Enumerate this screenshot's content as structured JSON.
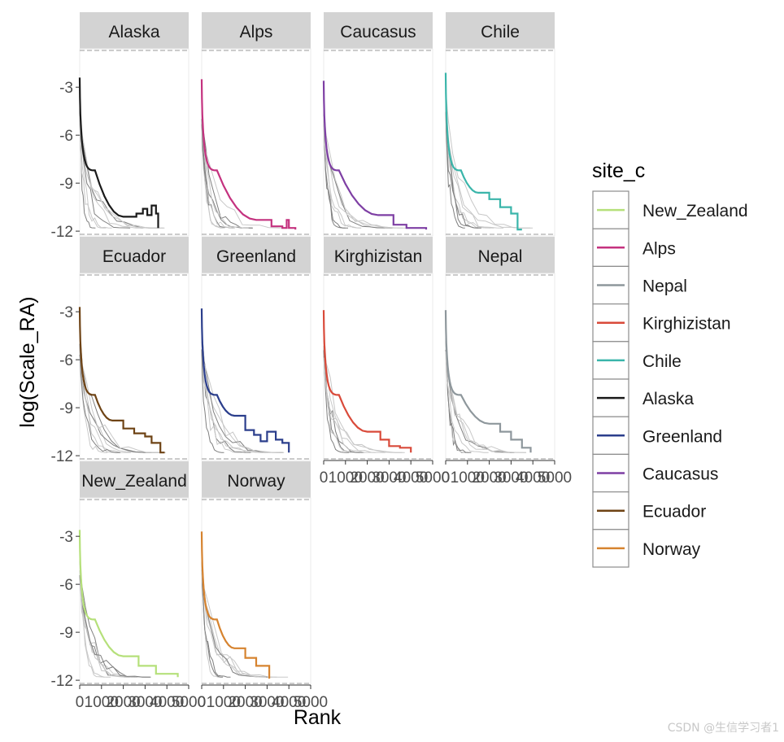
{
  "chart_data": {
    "type": "line",
    "title": "",
    "xlabel": "Rank",
    "ylabel": "log(Scale_RA)",
    "xlim": [
      0,
      5000
    ],
    "ylim": [
      -12.3,
      -0.6
    ],
    "y_ticks": [
      -3,
      -6,
      -9,
      -12
    ],
    "y_tick_labels": [
      "-3",
      "-6",
      "-9",
      "-12"
    ],
    "x_ticks": [
      0,
      1000,
      2000,
      3000,
      4000,
      5000
    ],
    "x_tick_labels": [
      "0",
      "1000",
      "2000",
      "3000",
      "4000",
      "5000"
    ],
    "grid": false,
    "legend_position": "right",
    "legend": {
      "title": "site_c",
      "items": [
        {
          "name": "New_Zealand",
          "color": "#b5e07a"
        },
        {
          "name": "Alps",
          "color": "#c4327f"
        },
        {
          "name": "Nepal",
          "color": "#8e979c"
        },
        {
          "name": "Kirghizistan",
          "color": "#d94a3a"
        },
        {
          "name": "Chile",
          "color": "#3ab5aa"
        },
        {
          "name": "Alaska",
          "color": "#1a1a1a"
        },
        {
          "name": "Greenland",
          "color": "#2b3e8c"
        },
        {
          "name": "Caucasus",
          "color": "#7e3fa4"
        },
        {
          "name": "Ecuador",
          "color": "#6e4315"
        },
        {
          "name": "Norway",
          "color": "#d6832f"
        }
      ]
    },
    "panels": [
      {
        "strip": "Alaska",
        "site": "Alaska",
        "color": "#1a1a1a",
        "peak": -2.4,
        "end_rank": 3600,
        "tail": [
          [
            2000,
            -11.1
          ],
          [
            2600,
            -10.9
          ],
          [
            2900,
            -10.6
          ],
          [
            3100,
            -11.0
          ],
          [
            3300,
            -10.4
          ],
          [
            3500,
            -10.9
          ],
          [
            3600,
            -11.8
          ]
        ]
      },
      {
        "strip": "Alps",
        "site": "Alps",
        "color": "#c4327f",
        "peak": -2.5,
        "end_rank": 4300,
        "tail": [
          [
            2500,
            -11.3
          ],
          [
            3200,
            -11.7
          ],
          [
            3700,
            -11.8
          ],
          [
            3900,
            -11.3
          ],
          [
            4000,
            -11.8
          ],
          [
            4300,
            -11.9
          ]
        ]
      },
      {
        "strip": "Caucasus",
        "site": "Caucasus",
        "color": "#7e3fa4",
        "peak": -2.6,
        "end_rank": 4700,
        "tail": [
          [
            2500,
            -11.0
          ],
          [
            3200,
            -11.6
          ],
          [
            3800,
            -11.8
          ],
          [
            4700,
            -11.9
          ]
        ]
      },
      {
        "strip": "Chile",
        "site": "Chile",
        "color": "#3ab5aa",
        "peak": -2.1,
        "end_rank": 3500,
        "tail": [
          [
            1500,
            -9.6
          ],
          [
            2000,
            -10.0
          ],
          [
            2500,
            -10.5
          ],
          [
            3000,
            -10.9
          ],
          [
            3300,
            -11.9
          ],
          [
            3500,
            -11.9
          ]
        ]
      },
      {
        "strip": "Ecuador",
        "site": "Ecuador",
        "color": "#6e4315",
        "peak": -2.7,
        "end_rank": 3900,
        "tail": [
          [
            1500,
            -9.8
          ],
          [
            2000,
            -10.3
          ],
          [
            2500,
            -10.6
          ],
          [
            3000,
            -10.8
          ],
          [
            3300,
            -11.2
          ],
          [
            3700,
            -11.8
          ],
          [
            3900,
            -11.8
          ]
        ]
      },
      {
        "strip": "Greenland",
        "site": "Greenland",
        "color": "#2b3e8c",
        "peak": -2.8,
        "end_rank": 4000,
        "tail": [
          [
            1500,
            -9.5
          ],
          [
            2000,
            -10.4
          ],
          [
            2400,
            -10.7
          ],
          [
            2700,
            -11.1
          ],
          [
            3000,
            -10.5
          ],
          [
            3400,
            -11.0
          ],
          [
            3700,
            -11.2
          ],
          [
            4000,
            -11.8
          ]
        ]
      },
      {
        "strip": "Kirghizistan",
        "site": "Kirghizistan",
        "color": "#d94a3a",
        "peak": -2.9,
        "end_rank": 4000,
        "tail": [
          [
            2000,
            -10.5
          ],
          [
            2600,
            -11.0
          ],
          [
            3000,
            -11.4
          ],
          [
            3500,
            -11.5
          ],
          [
            4000,
            -11.8
          ]
        ]
      },
      {
        "strip": "Nepal",
        "site": "Nepal",
        "color": "#8e979c",
        "peak": -2.9,
        "end_rank": 3900,
        "tail": [
          [
            2000,
            -10.0
          ],
          [
            2500,
            -10.5
          ],
          [
            3000,
            -11.0
          ],
          [
            3500,
            -11.5
          ],
          [
            3900,
            -11.8
          ]
        ]
      },
      {
        "strip": "New_Zealand",
        "site": "New_Zealand",
        "color": "#b5e07a",
        "peak": -2.6,
        "end_rank": 4500,
        "tail": [
          [
            2000,
            -10.5
          ],
          [
            2700,
            -11.1
          ],
          [
            3500,
            -11.6
          ],
          [
            4500,
            -11.8
          ]
        ]
      },
      {
        "strip": "Norway",
        "site": "Norway",
        "color": "#d6832f",
        "peak": -2.7,
        "end_rank": 3100,
        "tail": [
          [
            1500,
            -10.0
          ],
          [
            2000,
            -10.6
          ],
          [
            2500,
            -11.1
          ],
          [
            3100,
            -11.9
          ]
        ]
      }
    ]
  },
  "watermark": "CSDN @生信学习者1"
}
